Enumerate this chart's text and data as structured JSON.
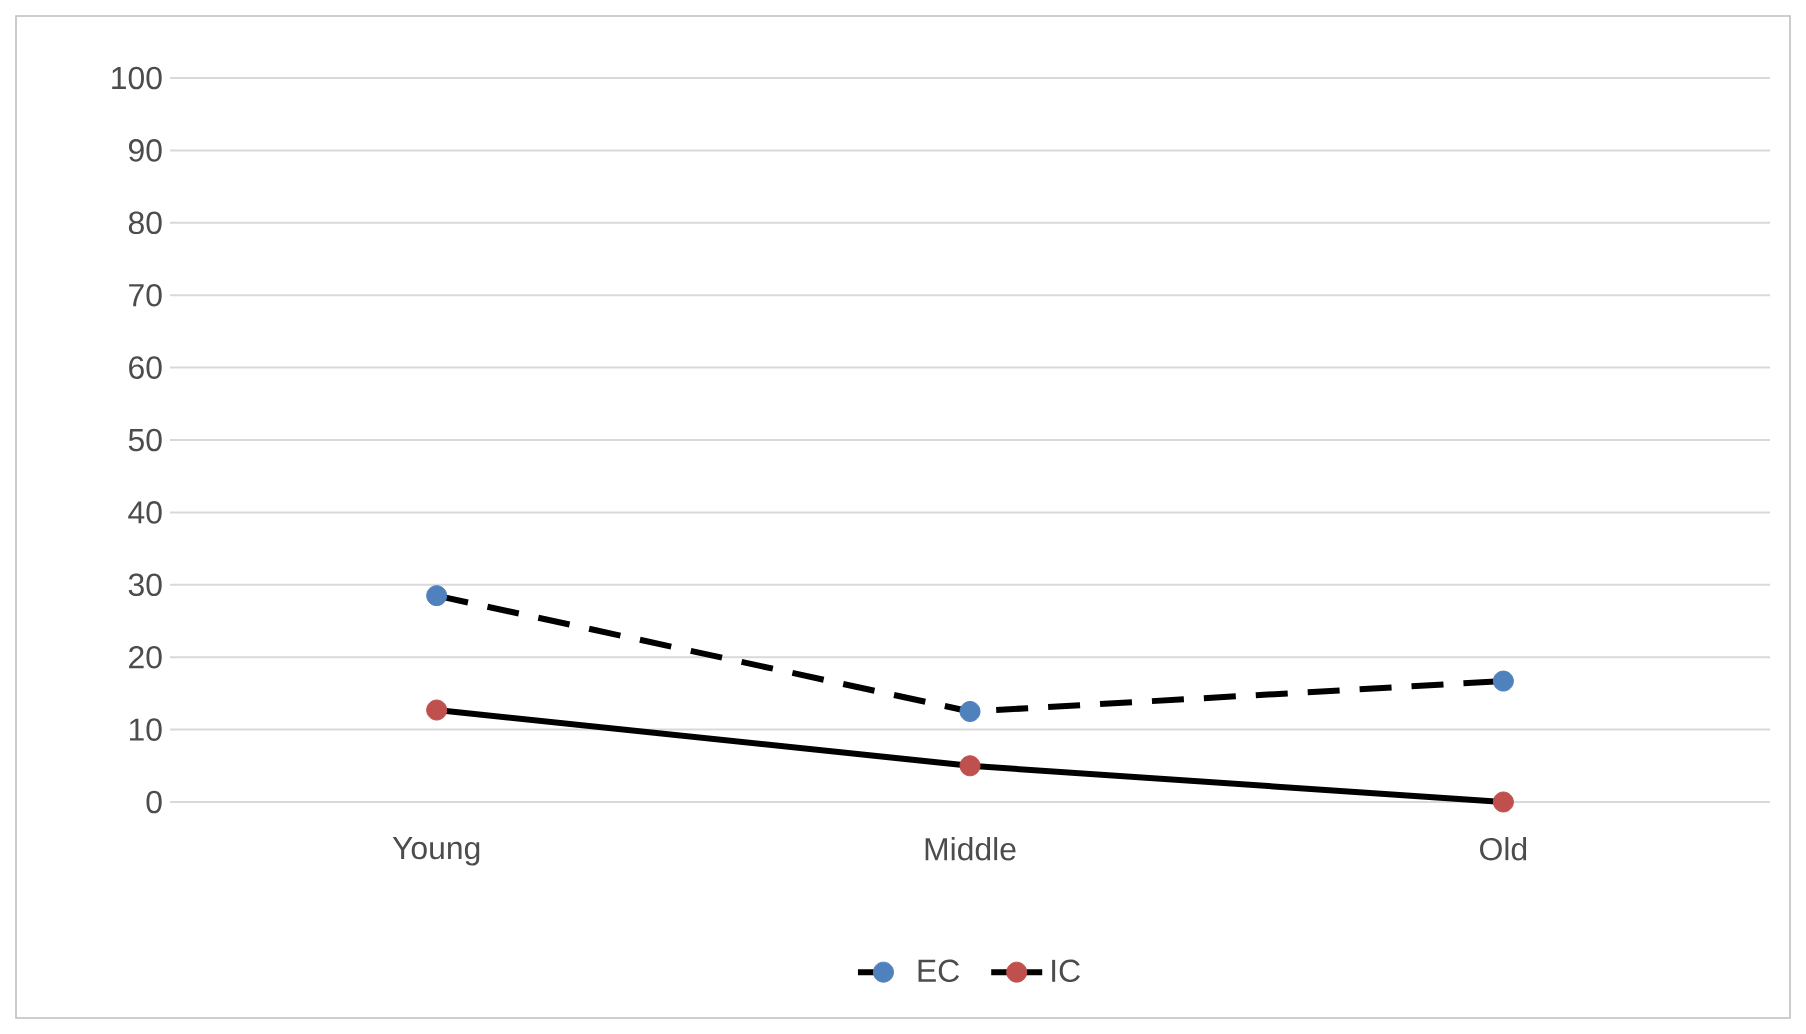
{
  "chart_data": {
    "type": "line",
    "categories": [
      "Young",
      "Middle",
      "Old"
    ],
    "series": [
      {
        "name": "EC",
        "color": "#4f81bd",
        "line_style": "dashed",
        "values": [
          28.5,
          12.5,
          16.7
        ]
      },
      {
        "name": "IC",
        "color": "#c0504d",
        "line_style": "solid",
        "values": [
          12.7,
          5,
          0
        ]
      }
    ],
    "ylim": [
      0,
      100
    ],
    "yticks": [
      0,
      10,
      20,
      30,
      40,
      50,
      60,
      70,
      80,
      90,
      100
    ],
    "grid": "y",
    "legend": "bottom",
    "marker": "circle"
  }
}
